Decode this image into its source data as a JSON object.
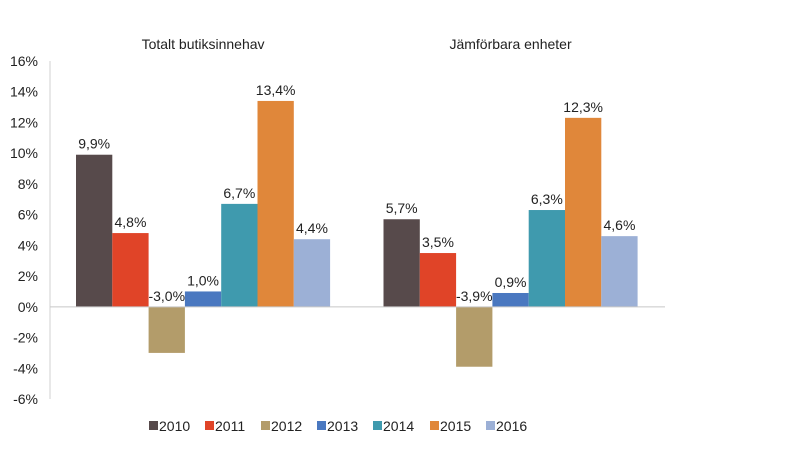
{
  "chart_data": {
    "type": "bar",
    "categories": [
      "Totalt butiksinnehav",
      "Jämförbara enheter"
    ],
    "series": [
      {
        "name": "2010",
        "color": "#574a4b",
        "values": [
          9.9,
          5.7
        ],
        "labels": [
          "9,9%",
          "5,7%"
        ]
      },
      {
        "name": "2011",
        "color": "#e04428",
        "values": [
          4.8,
          3.5
        ],
        "labels": [
          "4,8%",
          "3,5%"
        ]
      },
      {
        "name": "2012",
        "color": "#b39c6a",
        "values": [
          -3.0,
          -3.9
        ],
        "labels": [
          "-3,0%",
          "-3,9%"
        ]
      },
      {
        "name": "2013",
        "color": "#4a78c0",
        "values": [
          1.0,
          0.9
        ],
        "labels": [
          "1,0%",
          "0,9%"
        ]
      },
      {
        "name": "2014",
        "color": "#3f9aae",
        "values": [
          6.7,
          6.3
        ],
        "labels": [
          "6,7%",
          "6,3%"
        ]
      },
      {
        "name": "2015",
        "color": "#e0873a",
        "values": [
          13.4,
          12.3
        ],
        "labels": [
          "13,4%",
          "12,3%"
        ]
      },
      {
        "name": "2016",
        "color": "#9cb0d6",
        "values": [
          4.4,
          4.6
        ],
        "labels": [
          "4,4%",
          "4,6%"
        ]
      }
    ],
    "ylim": [
      -6,
      16
    ],
    "yticks": [
      16,
      14,
      12,
      10,
      8,
      6,
      4,
      2,
      0,
      -2,
      -4,
      -6
    ],
    "ytick_labels": [
      "16%",
      "14%",
      "12%",
      "10%",
      "8%",
      "6%",
      "4%",
      "2%",
      "0%",
      "-2%",
      "-4%",
      "-6%"
    ],
    "grid": false,
    "legend_position": "bottom"
  }
}
